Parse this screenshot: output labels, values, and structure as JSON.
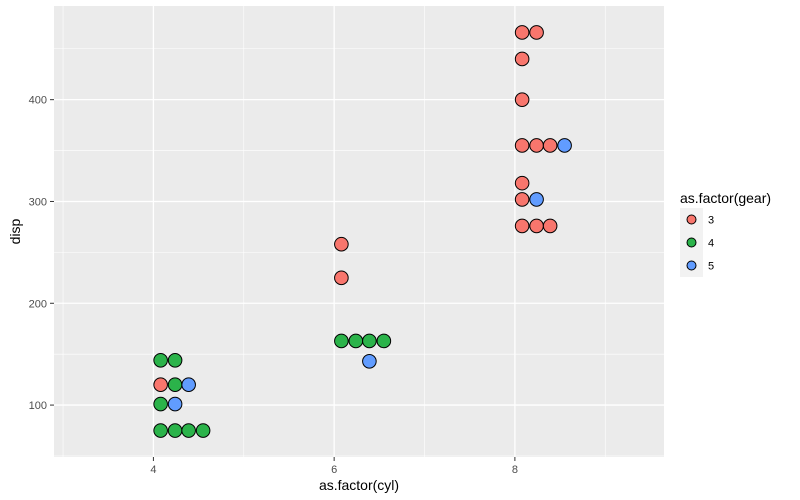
{
  "chart_data": {
    "type": "scatter",
    "title": "",
    "xlabel": "as.factor(cyl)",
    "ylabel": "disp",
    "xlim": [
      2.9,
      9.65
    ],
    "ylim": [
      49,
      492
    ],
    "x_ticks": [
      4,
      6,
      8
    ],
    "y_ticks": [
      100,
      200,
      300,
      400
    ],
    "grid": true,
    "colors": {
      "panel": "#ebebeb",
      "grid": "#ffffff",
      "outline": "#000000"
    },
    "legend": {
      "title": "as.factor(gear)",
      "placement": "right",
      "entries": [
        {
          "label": "3",
          "color": "#F8766D"
        },
        {
          "label": "4",
          "color": "#2BB34A"
        },
        {
          "label": "5",
          "color": "#619CFF"
        }
      ]
    },
    "points": [
      {
        "x": 4.08,
        "y": 144,
        "gear": "4"
      },
      {
        "x": 4.24,
        "y": 144,
        "gear": "4"
      },
      {
        "x": 4.08,
        "y": 120,
        "gear": "3"
      },
      {
        "x": 4.24,
        "y": 120,
        "gear": "4"
      },
      {
        "x": 4.39,
        "y": 120,
        "gear": "5"
      },
      {
        "x": 4.08,
        "y": 101,
        "gear": "4"
      },
      {
        "x": 4.24,
        "y": 101,
        "gear": "5"
      },
      {
        "x": 4.08,
        "y": 75,
        "gear": "4"
      },
      {
        "x": 4.24,
        "y": 75,
        "gear": "4"
      },
      {
        "x": 4.39,
        "y": 75,
        "gear": "4"
      },
      {
        "x": 4.55,
        "y": 75,
        "gear": "4"
      },
      {
        "x": 6.08,
        "y": 258,
        "gear": "3"
      },
      {
        "x": 6.08,
        "y": 225,
        "gear": "3"
      },
      {
        "x": 6.08,
        "y": 163,
        "gear": "4"
      },
      {
        "x": 6.24,
        "y": 163,
        "gear": "4"
      },
      {
        "x": 6.39,
        "y": 163,
        "gear": "4"
      },
      {
        "x": 6.55,
        "y": 163,
        "gear": "4"
      },
      {
        "x": 6.39,
        "y": 143,
        "gear": "5"
      },
      {
        "x": 8.08,
        "y": 466,
        "gear": "3"
      },
      {
        "x": 8.24,
        "y": 466,
        "gear": "3"
      },
      {
        "x": 8.08,
        "y": 440,
        "gear": "3"
      },
      {
        "x": 8.08,
        "y": 400,
        "gear": "3"
      },
      {
        "x": 8.08,
        "y": 355,
        "gear": "3"
      },
      {
        "x": 8.24,
        "y": 355,
        "gear": "3"
      },
      {
        "x": 8.39,
        "y": 355,
        "gear": "3"
      },
      {
        "x": 8.55,
        "y": 355,
        "gear": "5"
      },
      {
        "x": 8.08,
        "y": 318,
        "gear": "3"
      },
      {
        "x": 8.08,
        "y": 302,
        "gear": "3"
      },
      {
        "x": 8.24,
        "y": 302,
        "gear": "5"
      },
      {
        "x": 8.08,
        "y": 276,
        "gear": "3"
      },
      {
        "x": 8.24,
        "y": 276,
        "gear": "3"
      },
      {
        "x": 8.39,
        "y": 276,
        "gear": "3"
      }
    ]
  }
}
